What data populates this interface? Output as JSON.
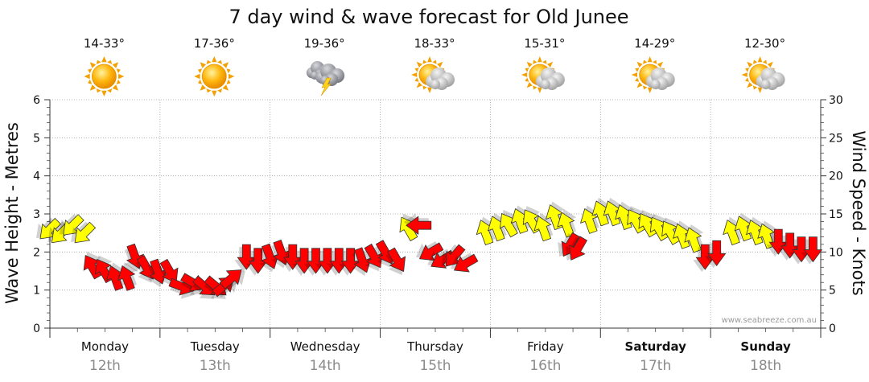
{
  "chart_data": {
    "type": "scatter",
    "title": "7 day wind & wave forecast for Old Junee",
    "ylabel_left": "Wave Height - Metres",
    "ylabel_right": "Wind Speed - Knots",
    "yticks_left": [
      "0",
      "1",
      "2",
      "3",
      "4",
      "5",
      "6"
    ],
    "yticks_right": [
      "0",
      "5",
      "10",
      "15",
      "20",
      "25",
      "30"
    ],
    "ylim_left": [
      0,
      6
    ],
    "ylim_right": [
      0,
      30
    ],
    "credit": "www.seabreeze.com.au",
    "grid": true,
    "colors": {
      "light_wind": "#ffff00",
      "strong_wind": "#ff0000",
      "grid": "#a0a0a0"
    },
    "days": [
      {
        "name": "Monday",
        "date": "12th",
        "temp": "14-33°",
        "icon": "sun-icon",
        "bold": false
      },
      {
        "name": "Tuesday",
        "date": "13th",
        "temp": "17-36°",
        "icon": "sun-icon",
        "bold": false
      },
      {
        "name": "Wednesday",
        "date": "14th",
        "temp": "19-36°",
        "icon": "storm-cloud-icon",
        "bold": false
      },
      {
        "name": "Thursday",
        "date": "15th",
        "temp": "18-33°",
        "icon": "sun-cloud-icon",
        "bold": false
      },
      {
        "name": "Friday",
        "date": "16th",
        "temp": "15-31°",
        "icon": "sun-cloud-icon",
        "bold": false
      },
      {
        "name": "Saturday",
        "date": "17th",
        "temp": "14-29°",
        "icon": "sun-cloud-icon",
        "bold": true
      },
      {
        "name": "Sunday",
        "date": "18th",
        "temp": "12-30°",
        "icon": "sun-cloud-icon",
        "bold": true
      }
    ],
    "wind": [
      {
        "t": 0.0,
        "speed": 13,
        "dir": 135
      },
      {
        "t": 0.15,
        "speed": 12.5,
        "dir": 135
      },
      {
        "t": 0.3,
        "speed": 13.5,
        "dir": 135
      },
      {
        "t": 0.45,
        "speed": 12.5,
        "dir": 135
      },
      {
        "t": 0.55,
        "speed": 8,
        "dir": 240
      },
      {
        "t": 0.7,
        "speed": 7.5,
        "dir": 240
      },
      {
        "t": 0.85,
        "speed": 6.5,
        "dir": 250
      },
      {
        "t": 1.0,
        "speed": 6.5,
        "dir": 250
      },
      {
        "t": 1.1,
        "speed": 9.5,
        "dir": 70
      },
      {
        "t": 1.25,
        "speed": 8,
        "dir": 60
      },
      {
        "t": 1.4,
        "speed": 7.5,
        "dir": 70
      },
      {
        "t": 1.55,
        "speed": 7.5,
        "dir": 60
      },
      {
        "t": 1.7,
        "speed": 5.5,
        "dir": 20
      },
      {
        "t": 1.85,
        "speed": 6,
        "dir": 30
      },
      {
        "t": 2.0,
        "speed": 5.5,
        "dir": 40
      },
      {
        "t": 2.15,
        "speed": 5.5,
        "dir": 40
      },
      {
        "t": 2.25,
        "speed": 5.5,
        "dir": 320
      },
      {
        "t": 2.35,
        "speed": 6.5,
        "dir": 320
      },
      {
        "t": 2.55,
        "speed": 9.5,
        "dir": 90
      },
      {
        "t": 2.7,
        "speed": 9,
        "dir": 90
      },
      {
        "t": 2.85,
        "speed": 9.5,
        "dir": 70
      },
      {
        "t": 3.0,
        "speed": 10,
        "dir": 70
      },
      {
        "t": 3.15,
        "speed": 9.5,
        "dir": 90
      },
      {
        "t": 3.3,
        "speed": 9,
        "dir": 90
      },
      {
        "t": 3.45,
        "speed": 9,
        "dir": 90
      },
      {
        "t": 3.6,
        "speed": 9,
        "dir": 90
      },
      {
        "t": 3.75,
        "speed": 9,
        "dir": 90
      },
      {
        "t": 3.9,
        "speed": 9,
        "dir": 90
      },
      {
        "t": 4.05,
        "speed": 9,
        "dir": 70
      },
      {
        "t": 4.2,
        "speed": 9.5,
        "dir": 60
      },
      {
        "t": 4.35,
        "speed": 10,
        "dir": 60
      },
      {
        "t": 4.5,
        "speed": 9,
        "dir": 60
      },
      {
        "t": 4.65,
        "speed": 13,
        "dir": 240
      },
      {
        "t": 4.8,
        "speed": 13.5,
        "dir": 180
      },
      {
        "t": 4.95,
        "speed": 10,
        "dir": 150
      },
      {
        "t": 5.1,
        "speed": 9,
        "dir": 150
      },
      {
        "t": 5.25,
        "speed": 9.5,
        "dir": 130
      },
      {
        "t": 5.4,
        "speed": 8.5,
        "dir": 150
      },
      {
        "t": 5.65,
        "speed": 12.5,
        "dir": 250
      },
      {
        "t": 5.8,
        "speed": 13,
        "dir": 250
      },
      {
        "t": 5.95,
        "speed": 13.5,
        "dir": 240
      },
      {
        "t": 6.1,
        "speed": 14,
        "dir": 250
      },
      {
        "t": 6.25,
        "speed": 14,
        "dir": 240
      },
      {
        "t": 6.4,
        "speed": 13,
        "dir": 250
      },
      {
        "t": 6.55,
        "speed": 14.5,
        "dir": 250
      },
      {
        "t": 6.7,
        "speed": 13.5,
        "dir": 250
      },
      {
        "t": 6.75,
        "speed": 11,
        "dir": 120
      },
      {
        "t": 6.85,
        "speed": 10.5,
        "dir": 120
      },
      {
        "t": 7.0,
        "speed": 14,
        "dir": 250
      },
      {
        "t": 7.15,
        "speed": 15,
        "dir": 250
      },
      {
        "t": 7.3,
        "speed": 15,
        "dir": 250
      },
      {
        "t": 7.45,
        "speed": 14.5,
        "dir": 250
      },
      {
        "t": 7.6,
        "speed": 14,
        "dir": 240
      },
      {
        "t": 7.75,
        "speed": 13.5,
        "dir": 240
      },
      {
        "t": 7.9,
        "speed": 13,
        "dir": 240
      },
      {
        "t": 8.05,
        "speed": 12.5,
        "dir": 240
      },
      {
        "t": 8.2,
        "speed": 12,
        "dir": 250
      },
      {
        "t": 8.35,
        "speed": 11.5,
        "dir": 250
      },
      {
        "t": 8.5,
        "speed": 9.5,
        "dir": 90
      },
      {
        "t": 8.65,
        "speed": 10,
        "dir": 90
      },
      {
        "t": 8.85,
        "speed": 12.5,
        "dir": 250
      },
      {
        "t": 9.0,
        "speed": 13,
        "dir": 250
      },
      {
        "t": 9.15,
        "speed": 12.5,
        "dir": 250
      },
      {
        "t": 9.3,
        "speed": 12,
        "dir": 250
      },
      {
        "t": 9.45,
        "speed": 11.5,
        "dir": 90
      },
      {
        "t": 9.6,
        "speed": 11,
        "dir": 90
      },
      {
        "t": 9.75,
        "speed": 10.5,
        "dir": 90
      },
      {
        "t": 9.9,
        "speed": 10.5,
        "dir": 90
      }
    ]
  }
}
